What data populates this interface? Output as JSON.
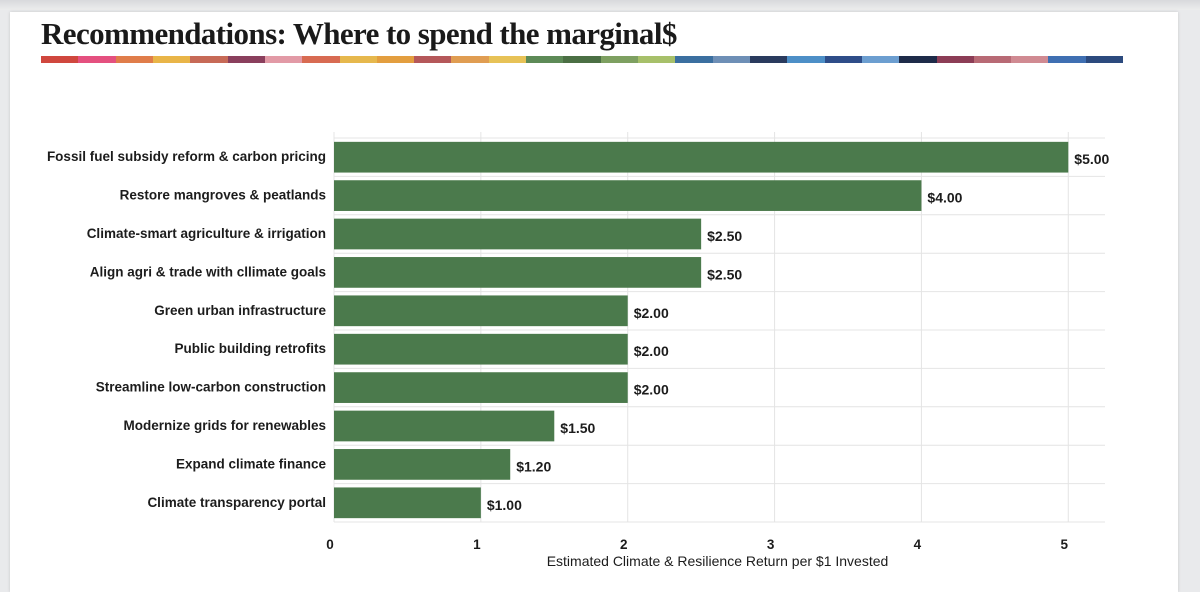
{
  "slide": {
    "title": "Recommendations: Where to spend the marginal$"
  },
  "colors": {
    "bar": "#4b7a4c",
    "grid": "#e4e4e4",
    "band": [
      "#d0473e",
      "#e4507f",
      "#e07d4a",
      "#e9b548",
      "#c76a57",
      "#8a3f5d",
      "#e29aa6",
      "#d86b52",
      "#e6b84d",
      "#e39e3f",
      "#b5585a",
      "#e09d52",
      "#e7c257",
      "#5d8a57",
      "#4b6f44",
      "#7ea061",
      "#a7c06a",
      "#3b6fa0",
      "#6e8fb6",
      "#2a3b5e",
      "#4d8fc7",
      "#2e4d89",
      "#6c9ed0",
      "#1e2b49",
      "#8c3d56",
      "#b86a75",
      "#d08a92",
      "#3f6fb2",
      "#2c4a7e"
    ]
  },
  "chart_data": {
    "type": "bar",
    "orientation": "horizontal",
    "categories": [
      "Fossil fuel subsidy reform & carbon pricing",
      "Restore mangroves & peatlands",
      "Climate-smart agriculture & irrigation",
      "Align agri & trade with cllimate goals",
      "Green urban infrastructure",
      "Public building retrofits",
      "Streamline low-carbon construction",
      "Modernize grids for renewables",
      "Expand climate finance",
      "Climate transparency portal"
    ],
    "values": [
      5.0,
      4.0,
      2.5,
      2.5,
      2.0,
      2.0,
      2.0,
      1.5,
      1.2,
      1.0
    ],
    "value_labels": [
      "$5.00",
      "$4.00",
      "$2.50",
      "$2.50",
      "$2.00",
      "$2.00",
      "$2.00",
      "$1.50",
      "$1.20",
      "$1.00"
    ],
    "xlabel": "Estimated Climate & Resilience Return per $1 Invested",
    "ylabel": "",
    "xlim": [
      0,
      5.25
    ],
    "xticks": [
      0,
      1,
      2,
      3,
      4,
      5
    ],
    "xtick_labels": [
      "0",
      "1",
      "2",
      "3",
      "4",
      "5"
    ],
    "grid": true
  }
}
